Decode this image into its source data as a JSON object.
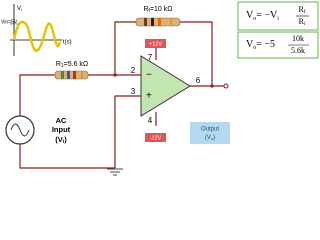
{
  "graph": {
    "y_label": {
      "main": "V",
      "sub": "i"
    },
    "amplitude": "Vin=5V",
    "x_label": "t(s)"
  },
  "resistors": {
    "rf": {
      "main": "R",
      "sub": "f",
      "rest": "=10 kΩ"
    },
    "r1": {
      "main": "R",
      "sub": "1",
      "rest": "=5.6 kΩ"
    }
  },
  "supply": {
    "positive": "+12V",
    "negative": "-12V"
  },
  "pins": {
    "inverting": "2",
    "non_inverting": "3",
    "v_plus": "7",
    "v_minus": "4",
    "output": "6"
  },
  "input": {
    "line1": "AC",
    "line2": "Input",
    "line3": {
      "open": "(V",
      "sub": "i",
      "close": ")"
    }
  },
  "output": {
    "line1": "Output",
    "line2": {
      "open": "(V",
      "sub": "o",
      "close": ")"
    }
  },
  "formulas": [
    {
      "lhs": "V",
      "lhs_sub": "o",
      "eq": "= −V",
      "eq_sub": "i",
      "num": "R",
      "num_sub": "f",
      "den": "R",
      "den_sub": "i"
    },
    {
      "lhs": "V",
      "lhs_sub": "o",
      "eq": "= −5",
      "num": "10k",
      "den": "5.6k"
    }
  ]
}
